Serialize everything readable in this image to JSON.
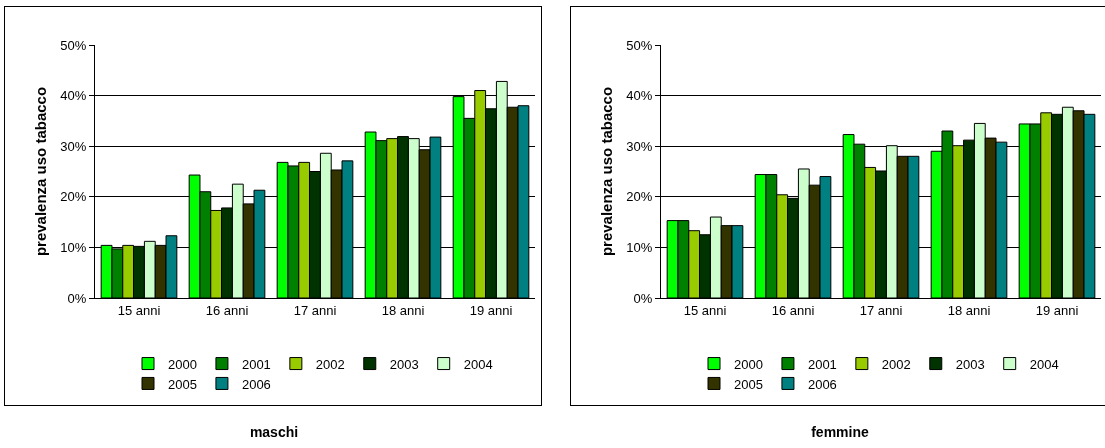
{
  "chart_data": [
    {
      "type": "bar",
      "title": "maschi",
      "ylabel": "prevalenza uso tabacco",
      "categories": [
        "15 anni",
        "16 anni",
        "17 anni",
        "18 anni",
        "19 anni"
      ],
      "ylim": [
        0,
        50
      ],
      "yticks": [
        {
          "value": 0,
          "label": "0%"
        },
        {
          "value": 10,
          "label": "10%"
        },
        {
          "value": 20,
          "label": "20%"
        },
        {
          "value": 30,
          "label": "30%"
        },
        {
          "value": 40,
          "label": "40%"
        },
        {
          "value": 50,
          "label": "50%"
        }
      ],
      "grid": "y",
      "legend": "bottom",
      "series": [
        {
          "name": "2000",
          "color": "#00ff00",
          "values": [
            10.4,
            24.3,
            26.8,
            32.8,
            39.8
          ]
        },
        {
          "name": "2001",
          "color": "#008000",
          "values": [
            9.7,
            21.0,
            26.1,
            31.1,
            35.5
          ]
        },
        {
          "name": "2002",
          "color": "#99cc00",
          "values": [
            10.4,
            17.3,
            26.8,
            31.5,
            41.0
          ]
        },
        {
          "name": "2003",
          "color": "#003300",
          "values": [
            10.2,
            17.8,
            25.0,
            31.9,
            37.4
          ]
        },
        {
          "name": "2004",
          "color": "#ccffcc",
          "values": [
            11.2,
            22.5,
            28.6,
            31.5,
            42.8
          ]
        },
        {
          "name": "2005",
          "color": "#333300",
          "values": [
            10.4,
            18.6,
            25.3,
            29.3,
            37.7
          ]
        },
        {
          "name": "2006",
          "color": "#008080",
          "values": [
            12.3,
            21.3,
            27.1,
            31.8,
            38.0
          ]
        }
      ]
    },
    {
      "type": "bar",
      "title": "femmine",
      "ylabel": "prevalenza uso tabacco",
      "categories": [
        "15 anni",
        "16 anni",
        "17 anni",
        "18 anni",
        "19 anni"
      ],
      "ylim": [
        0,
        50
      ],
      "yticks": [
        {
          "value": 0,
          "label": "0%"
        },
        {
          "value": 10,
          "label": "10%"
        },
        {
          "value": 20,
          "label": "20%"
        },
        {
          "value": 30,
          "label": "30%"
        },
        {
          "value": 40,
          "label": "40%"
        },
        {
          "value": 50,
          "label": "50%"
        }
      ],
      "grid": "y",
      "legend": "bottom",
      "series": [
        {
          "name": "2000",
          "color": "#00ff00",
          "values": [
            15.3,
            24.4,
            32.3,
            29.0,
            34.4
          ]
        },
        {
          "name": "2001",
          "color": "#008000",
          "values": [
            15.3,
            24.4,
            30.4,
            33.0,
            34.4
          ]
        },
        {
          "name": "2002",
          "color": "#99cc00",
          "values": [
            13.3,
            20.4,
            25.8,
            30.1,
            36.6
          ]
        },
        {
          "name": "2003",
          "color": "#003300",
          "values": [
            12.5,
            19.7,
            25.1,
            31.2,
            36.3
          ]
        },
        {
          "name": "2004",
          "color": "#ccffcc",
          "values": [
            16.0,
            25.5,
            30.1,
            34.5,
            37.7
          ]
        },
        {
          "name": "2005",
          "color": "#333300",
          "values": [
            14.3,
            22.3,
            28.0,
            31.6,
            37.0
          ]
        },
        {
          "name": "2006",
          "color": "#008080",
          "values": [
            14.3,
            24.0,
            28.0,
            30.8,
            36.3
          ]
        }
      ]
    }
  ]
}
